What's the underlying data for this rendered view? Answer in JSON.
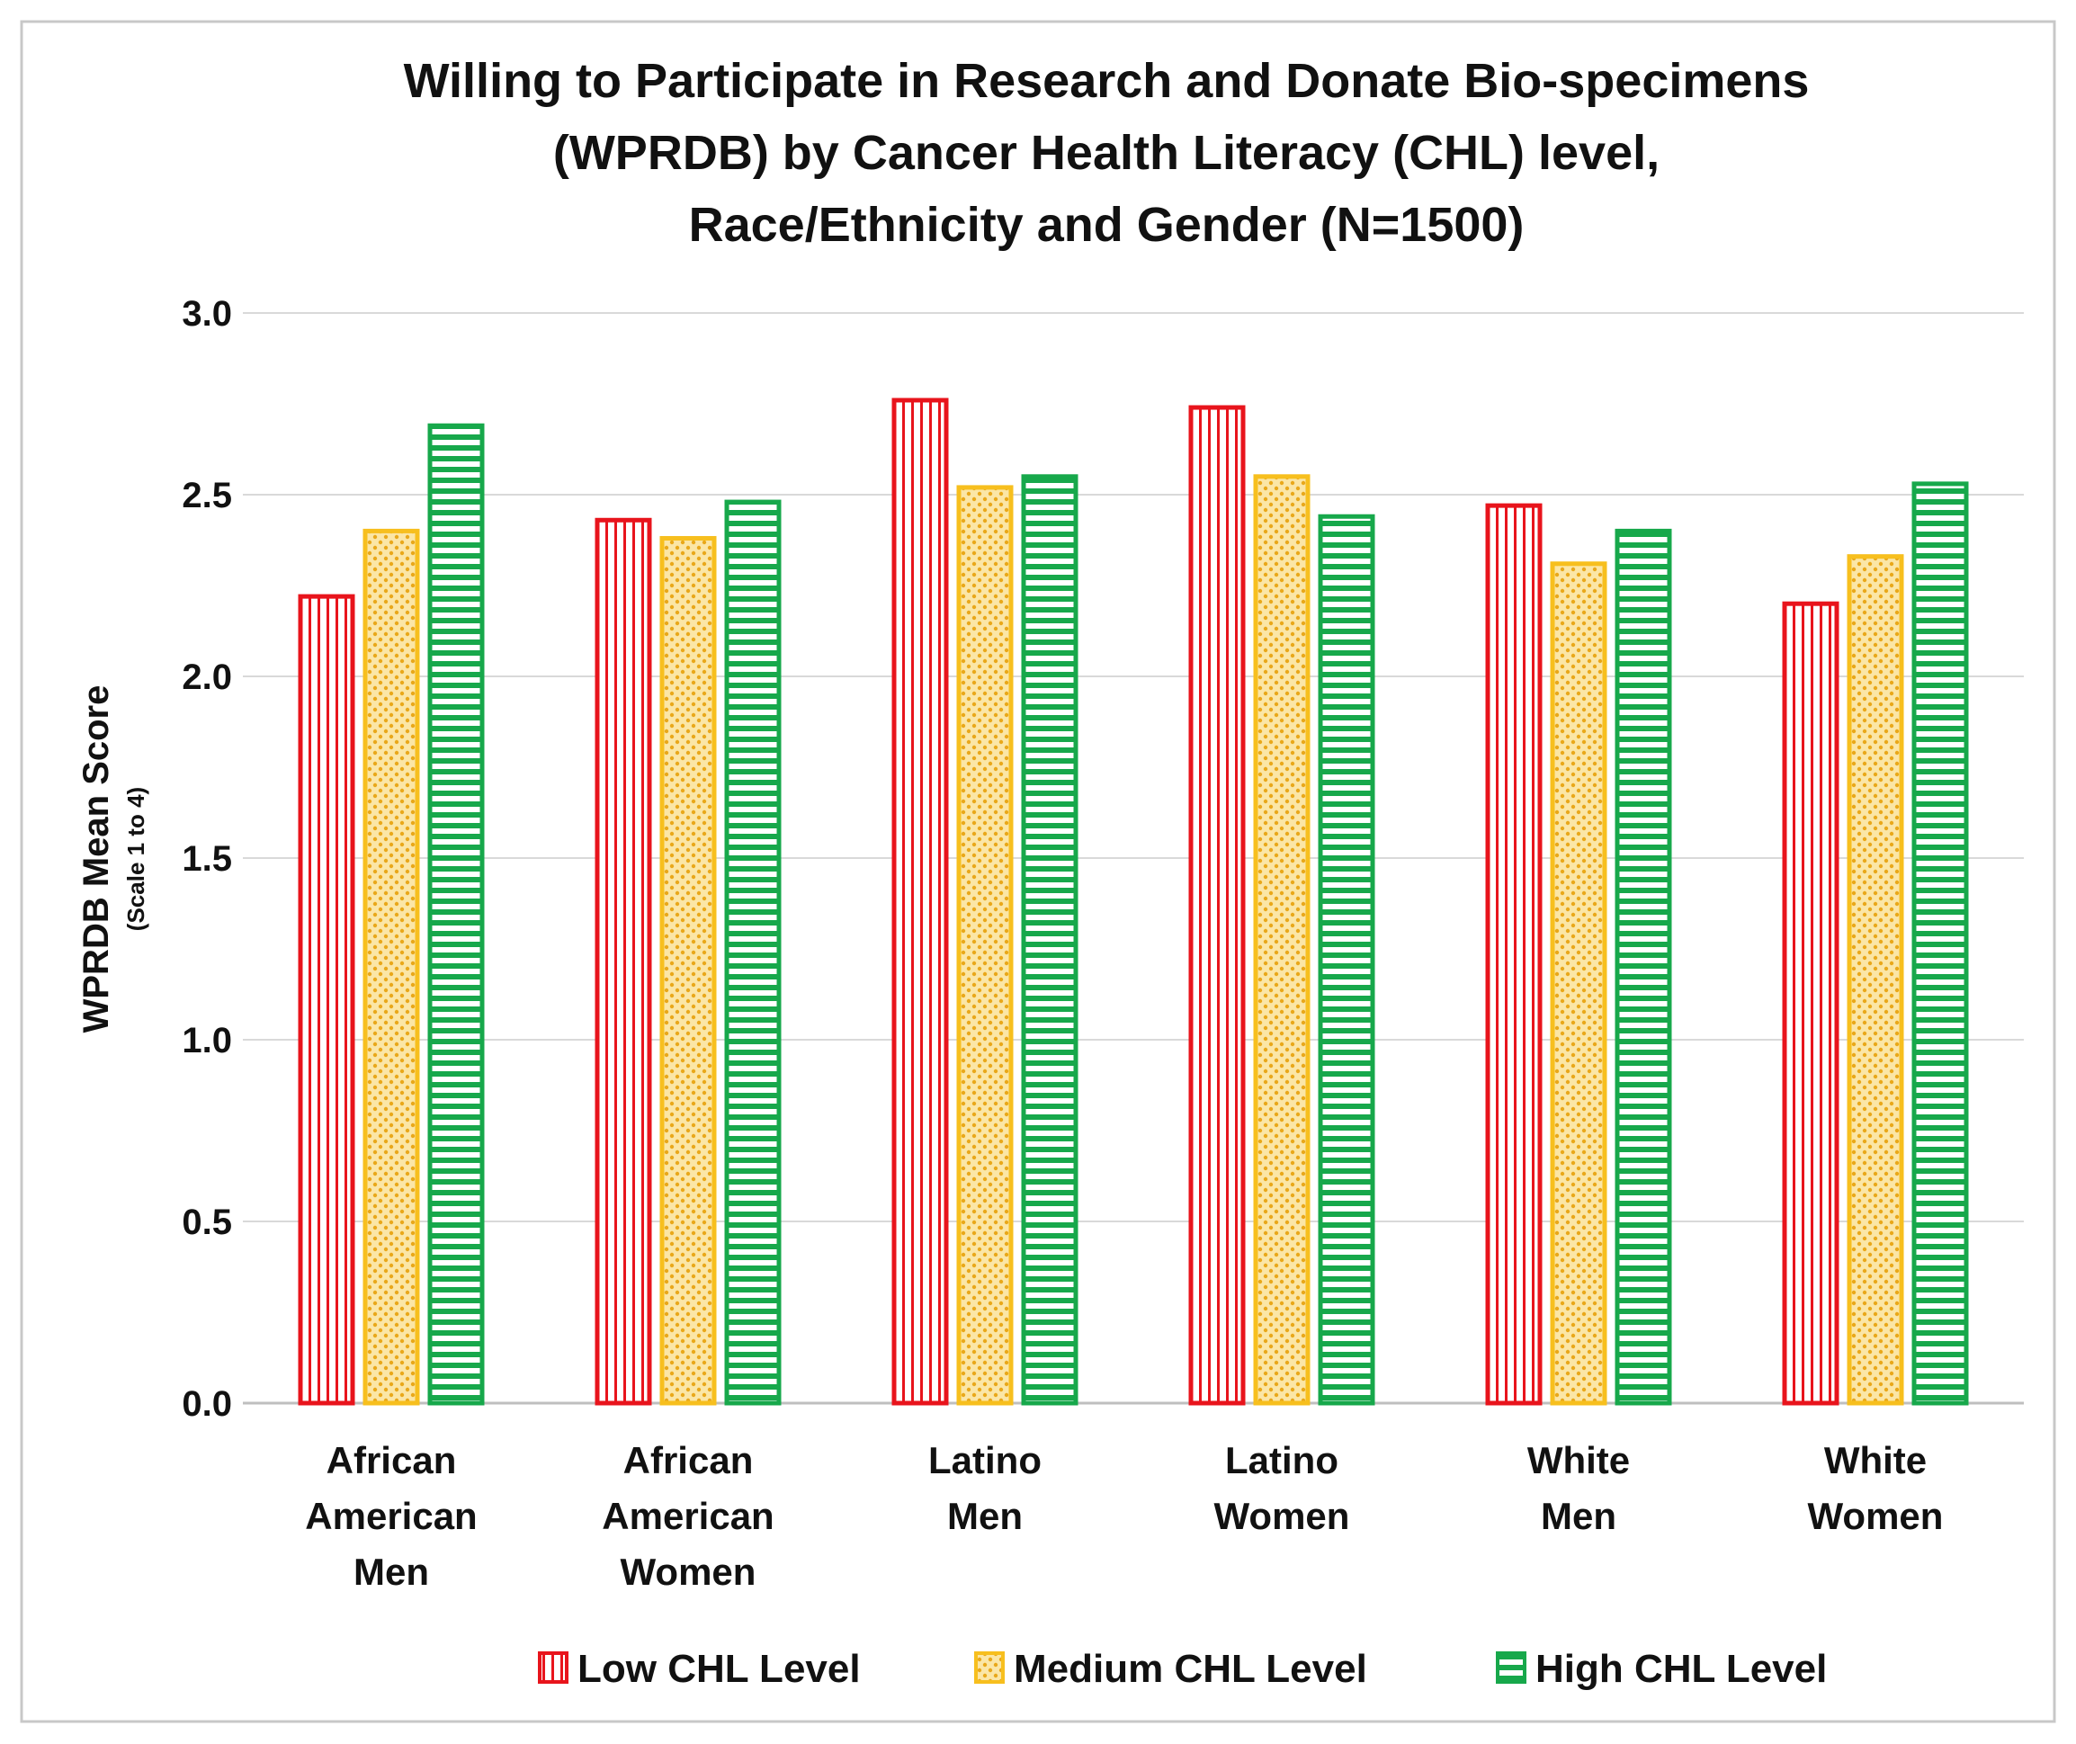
{
  "chart_data": {
    "type": "bar",
    "title": [
      "Willing to Participate in Research and Donate Bio-specimens",
      "(WPRDB) by Cancer Health Literacy (CHL) level,",
      "Race/Ethnicity and Gender (N=1500)"
    ],
    "xlabel": "",
    "ylabel": "WPRDB Mean Score",
    "ylabel_sub": "(Scale 1 to 4)",
    "ylim": [
      0,
      3
    ],
    "yticks": [
      "0.0",
      "0.5",
      "1.0",
      "1.5",
      "2.0",
      "2.5",
      "3.0"
    ],
    "ytick_values": [
      0,
      0.5,
      1.0,
      1.5,
      2.0,
      2.5,
      3.0
    ],
    "grid": true,
    "legend_position": "bottom",
    "categories": [
      [
        "African",
        "American",
        "Men"
      ],
      [
        "African",
        "American",
        "Women"
      ],
      [
        "Latino",
        "Men"
      ],
      [
        "Latino",
        "Women"
      ],
      [
        "White",
        "Men"
      ],
      [
        "White",
        "Women"
      ]
    ],
    "series": [
      {
        "name": "Low CHL Level",
        "color": "#e8141c",
        "pattern": "vertical-lines",
        "values": [
          2.22,
          2.43,
          2.76,
          2.74,
          2.47,
          2.2
        ]
      },
      {
        "name": "Medium CHL Level",
        "color": "#f7bf1e",
        "pattern": "dots",
        "values": [
          2.4,
          2.38,
          2.52,
          2.55,
          2.31,
          2.33
        ]
      },
      {
        "name": "High CHL Level",
        "color": "#17a84b",
        "pattern": "horizontal-lines",
        "values": [
          2.69,
          2.48,
          2.55,
          2.44,
          2.4,
          2.53
        ]
      }
    ]
  }
}
